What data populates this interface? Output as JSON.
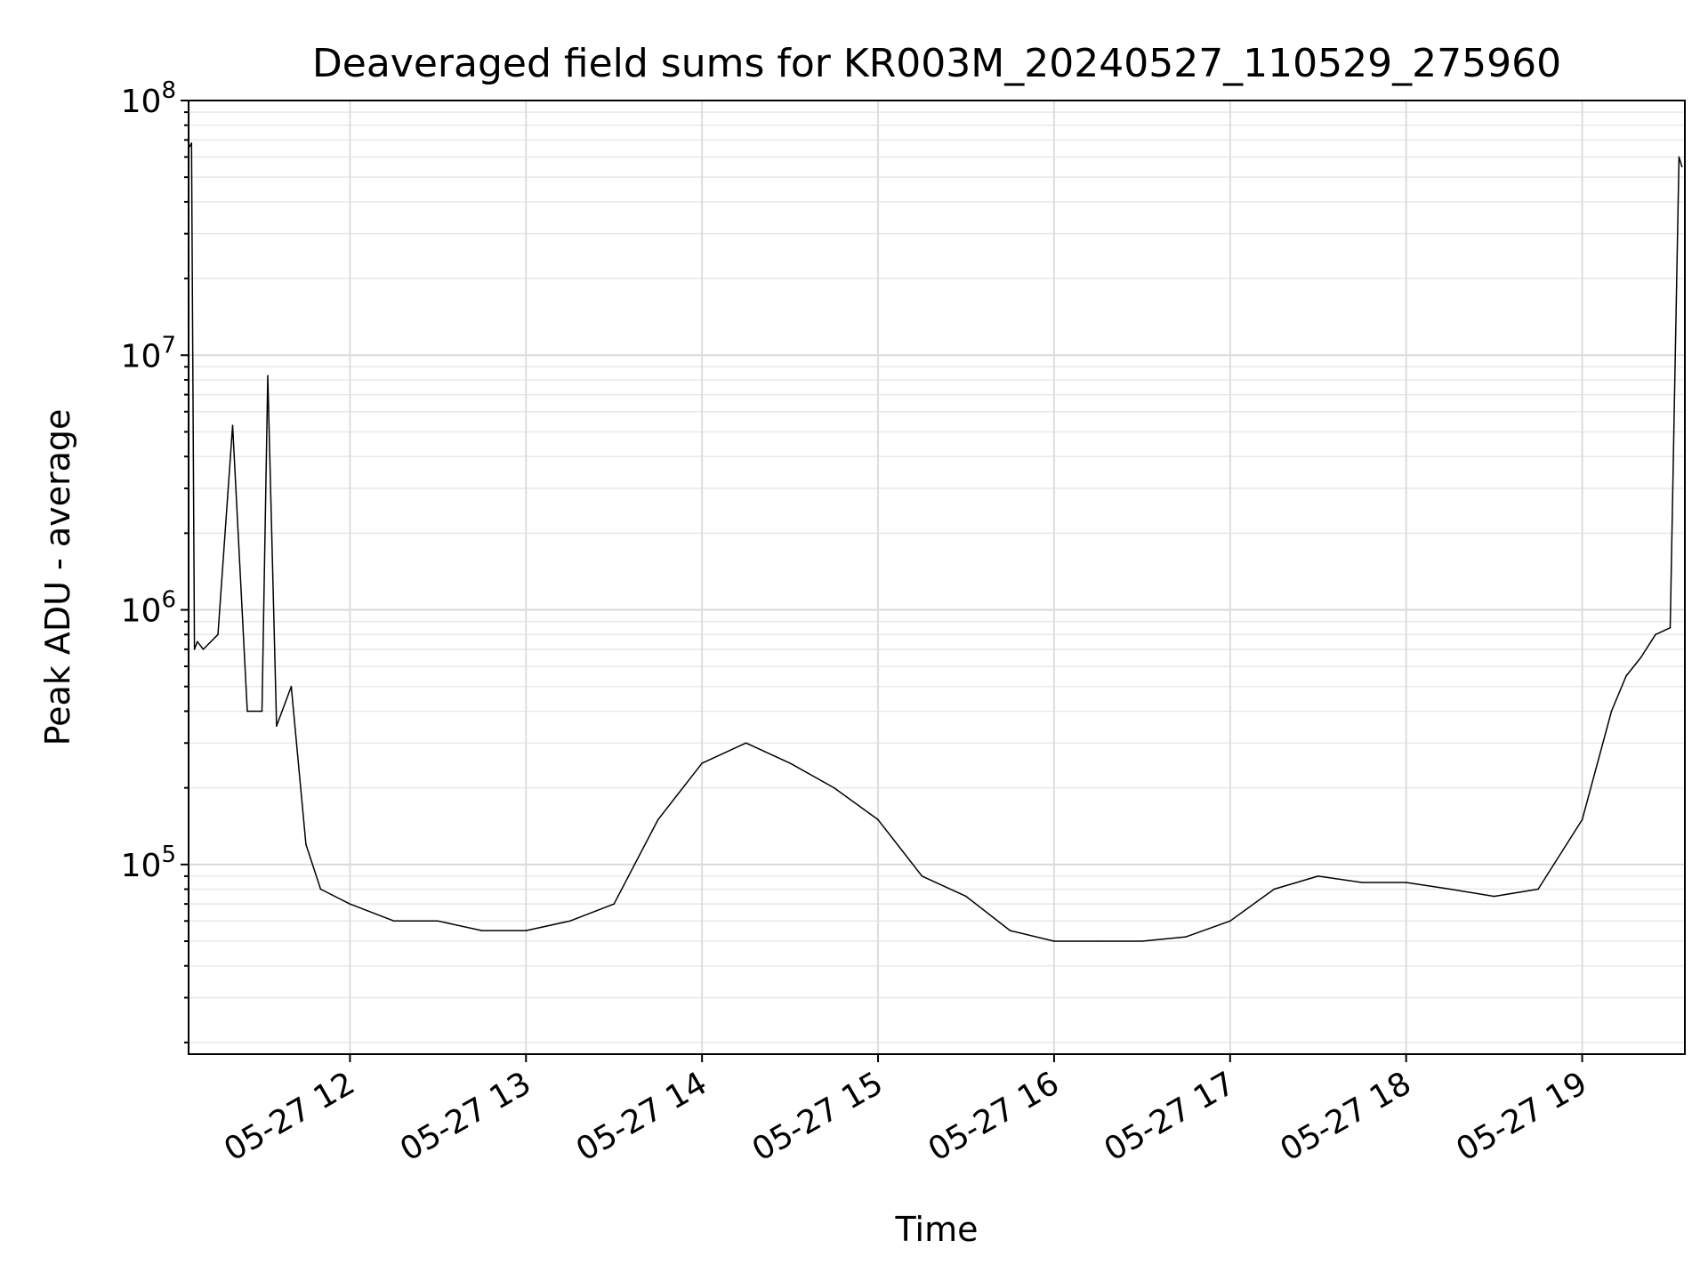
{
  "chart_data": {
    "type": "line",
    "title": "Deaveraged field sums for KR003M_20240527_110529_275960",
    "xlabel": "Time",
    "ylabel": "Peak ADU - average",
    "y_scale": "log",
    "ylim": [
      18000,
      100000000
    ],
    "xlim": [
      "2024-05-27 11:05",
      "2024-05-27 19:35"
    ],
    "x_ticks": [
      {
        "value": "2024-05-27 12:00",
        "label": "05-27 12"
      },
      {
        "value": "2024-05-27 13:00",
        "label": "05-27 13"
      },
      {
        "value": "2024-05-27 14:00",
        "label": "05-27 14"
      },
      {
        "value": "2024-05-27 15:00",
        "label": "05-27 15"
      },
      {
        "value": "2024-05-27 16:00",
        "label": "05-27 16"
      },
      {
        "value": "2024-05-27 17:00",
        "label": "05-27 17"
      },
      {
        "value": "2024-05-27 18:00",
        "label": "05-27 18"
      },
      {
        "value": "2024-05-27 19:00",
        "label": "05-27 19"
      }
    ],
    "y_ticks": [
      {
        "value": 100000,
        "base": "10",
        "exp": "5"
      },
      {
        "value": 1000000,
        "base": "10",
        "exp": "6"
      },
      {
        "value": 10000000,
        "base": "10",
        "exp": "7"
      },
      {
        "value": 100000000,
        "base": "10",
        "exp": "8"
      }
    ],
    "grid": true,
    "series": [
      {
        "color": "#000000",
        "x": [
          "2024-05-27 11:05",
          "2024-05-27 11:06",
          "2024-05-27 11:07",
          "2024-05-27 11:08",
          "2024-05-27 11:10",
          "2024-05-27 11:15",
          "2024-05-27 11:20",
          "2024-05-27 11:25",
          "2024-05-27 11:30",
          "2024-05-27 11:32",
          "2024-05-27 11:35",
          "2024-05-27 11:40",
          "2024-05-27 11:45",
          "2024-05-27 11:50",
          "2024-05-27 12:00",
          "2024-05-27 12:15",
          "2024-05-27 12:30",
          "2024-05-27 12:45",
          "2024-05-27 13:00",
          "2024-05-27 13:15",
          "2024-05-27 13:30",
          "2024-05-27 13:45",
          "2024-05-27 14:00",
          "2024-05-27 14:15",
          "2024-05-27 14:30",
          "2024-05-27 14:45",
          "2024-05-27 15:00",
          "2024-05-27 15:15",
          "2024-05-27 15:30",
          "2024-05-27 15:45",
          "2024-05-27 16:00",
          "2024-05-27 16:15",
          "2024-05-27 16:30",
          "2024-05-27 16:45",
          "2024-05-27 17:00",
          "2024-05-27 17:15",
          "2024-05-27 17:30",
          "2024-05-27 17:45",
          "2024-05-27 18:00",
          "2024-05-27 18:15",
          "2024-05-27 18:30",
          "2024-05-27 18:45",
          "2024-05-27 19:00",
          "2024-05-27 19:10",
          "2024-05-27 19:15",
          "2024-05-27 19:20",
          "2024-05-27 19:25",
          "2024-05-27 19:30",
          "2024-05-27 19:33",
          "2024-05-27 19:34"
        ],
        "y": [
          65000000,
          68000000,
          700000,
          750000,
          700000,
          800000,
          5300000,
          400000,
          400000,
          8300000,
          350000,
          500000,
          120000,
          80000,
          70000,
          60000,
          60000,
          55000,
          55000,
          60000,
          70000,
          150000,
          250000,
          300000,
          250000,
          200000,
          150000,
          90000,
          75000,
          55000,
          50000,
          50000,
          50000,
          52000,
          60000,
          80000,
          90000,
          85000,
          85000,
          80000,
          75000,
          80000,
          150000,
          400000,
          550000,
          650000,
          800000,
          850000,
          60000000,
          55000000
        ]
      }
    ]
  }
}
